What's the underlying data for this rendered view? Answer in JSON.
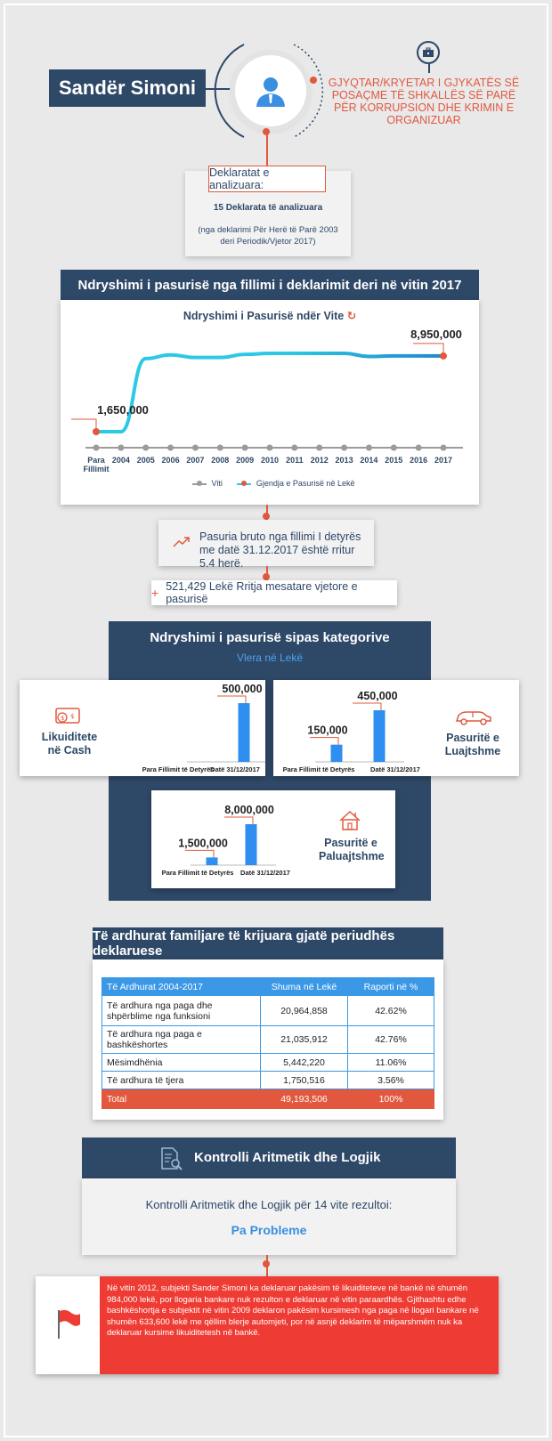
{
  "header": {
    "name": "Sandër Simoni",
    "role": "GJYQTAR/KRYETAR I GJYKATËS SË POSAÇME TË SHKALLËS SË PARË PËR KORRUPSION DHE KRIMIN E ORGANIZUAR"
  },
  "declarations": {
    "title": "Deklaratat e analizuara:",
    "count": "15 Deklarata të analizuara",
    "range": "(nga deklarimi Për Herë të Parë 2003 deri Periodik/Vjetor 2017)"
  },
  "wealth_change": {
    "section_title": "Ndryshimi i pasurisë nga fillimi i deklarimit deri në vitin 2017",
    "chart_title": "Ndryshimi i Pasurisë ndër Vite",
    "start_label": "1,650,000",
    "end_label": "8,950,000",
    "legend_year": "Viti",
    "legend_series": "Gjendja e Pasurisë në Lekë"
  },
  "chart_data": {
    "type": "line",
    "title": "Ndryshimi i Pasurisë ndër Vite",
    "x": [
      "Para Fillimit",
      "2004",
      "2005",
      "2006",
      "2007",
      "2008",
      "2009",
      "2010",
      "2011",
      "2012",
      "2013",
      "2014",
      "2015",
      "2016",
      "2017"
    ],
    "series": [
      {
        "name": "Gjendja e Pasurisë në Lekë",
        "values": [
          1650000,
          1650000,
          8700000,
          9050000,
          8800000,
          8800000,
          9100000,
          9200000,
          9200000,
          9200000,
          9200000,
          8900000,
          8950000,
          8950000,
          8950000
        ]
      }
    ],
    "data_labels": [
      "1,650,000",
      "8,950,000"
    ],
    "grid": false,
    "legend": "bottom",
    "colors": {
      "line": "#2bc9e6",
      "line_end": "#1f86c9",
      "marker": "#e2583e",
      "axis": "#9b9b9b"
    }
  },
  "growth": {
    "text": "Pasuria bruto nga fillimi I detyrës me datë 31.12.2017 është rritur 5.4 herë.",
    "average": "521,429 Lekë Rritja mesatare vjetore e pasurisë"
  },
  "categories": {
    "title": "Ndryshimi i pasurisë sipas kategorive",
    "subtitle": "Vlera në Lekë",
    "x_start": "Para Fillimit të Detyrës",
    "x_end": "Datë 31/12/2017",
    "items": [
      {
        "label": "Likuiditete në Cash",
        "start": 0,
        "end": 500000,
        "start_label": "",
        "end_label": "500,000"
      },
      {
        "label": "Pasuritë e Luajtshme",
        "start": 150000,
        "end": 450000,
        "start_label": "150,000",
        "end_label": "450,000"
      },
      {
        "label": "Pasuritë e Paluajtshme",
        "start": 1500000,
        "end": 8000000,
        "start_label": "1,500,000",
        "end_label": "8,000,000"
      }
    ]
  },
  "income": {
    "title": "Të ardhurat familjare të krijuara gjatë periudhës deklaruese",
    "headers": [
      "Të Ardhurat 2004-2017",
      "Shuma në Lekë",
      "Raporti në %"
    ],
    "rows": [
      [
        "Të ardhura nga paga dhe shpërblime nga funksioni",
        "20,964,858",
        "42.62%"
      ],
      [
        "Të ardhura nga paga e bashkëshortes",
        "21,035,912",
        "42.76%"
      ],
      [
        "Mësimdhënia",
        "5,442,220",
        "11.06%"
      ],
      [
        "Të ardhura të tjera",
        "1,750,516",
        "3.56%"
      ]
    ],
    "total": [
      "Total",
      "49,193,506",
      "100%"
    ]
  },
  "control": {
    "title": "Kontrolli Aritmetik dhe Logjik",
    "text": "Kontrolli Aritmetik dhe Logjik për 14 vite rezultoi:",
    "result": "Pa Probleme"
  },
  "note": {
    "text": "Në vitin 2012, subjekti Sander Simoni ka deklaruar pakësim të likuiditeteve në bankë në shumën 984,000 lekë, por llogaria bankare nuk rezulton e deklaruar në vitin paraardhës. Gjithashtu edhe bashkëshortja e subjektit në vitin 2009 deklaron pakësim kursimesh nga paga në llogari bankare në shumën 633,600 lekë me qëllim blerje automjeti, por në asnjë deklarim të mëparshmëm nuk ka deklaruar kursime likuiditetesh në bankë."
  },
  "icons": [
    "briefcase-icon",
    "user-icon",
    "refresh-icon",
    "trend-up-icon",
    "plus-icon",
    "cash-icon",
    "car-icon",
    "house-icon",
    "document-search-icon",
    "flag-icon"
  ]
}
